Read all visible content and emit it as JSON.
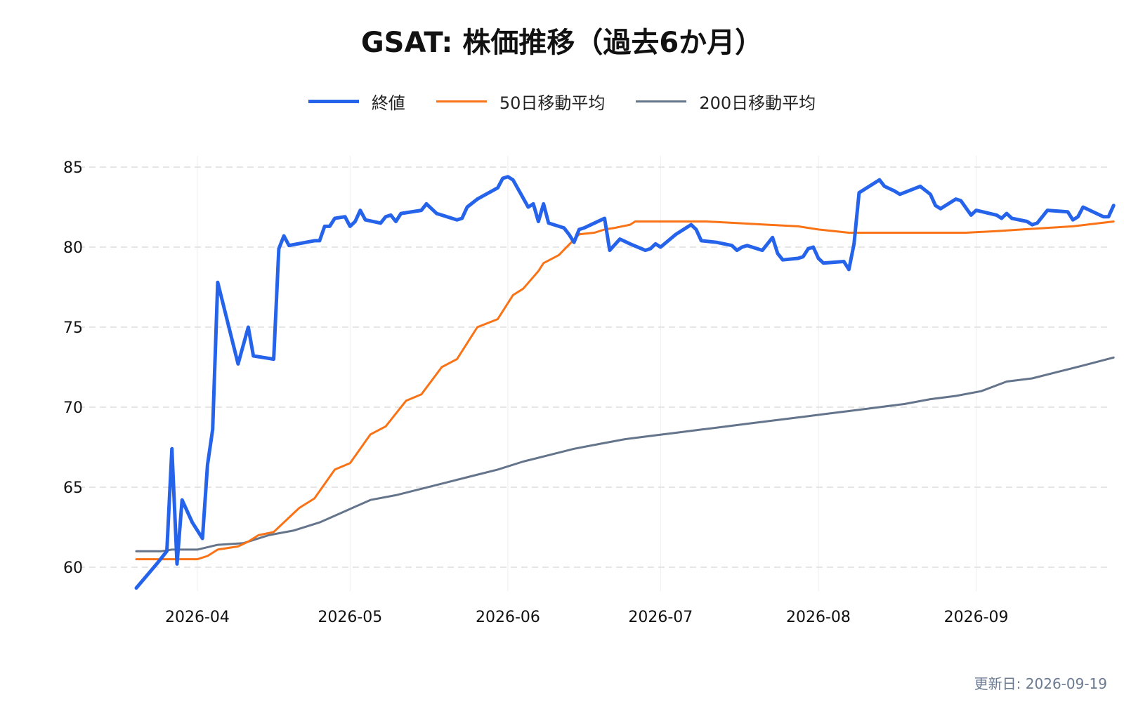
{
  "chart_data": {
    "type": "line",
    "title": "GSAT: 株価推移（過去6か月）",
    "xlabel": "",
    "ylabel": "",
    "grid": true,
    "legend_position": "top-center",
    "x_axis": {
      "min": "2026-03-20",
      "max": "2026-09-19",
      "ticks": [
        "2026-04-01",
        "2026-05-01",
        "2026-06-01",
        "2026-07-01",
        "2026-08-01",
        "2026-09-01"
      ],
      "tick_labels": [
        "2026-04",
        "2026-05",
        "2026-06",
        "2026-07",
        "2026-08",
        "2026-09"
      ]
    },
    "y_axis": {
      "min": 58,
      "max": 86,
      "ticks": [
        60,
        65,
        70,
        75,
        80,
        85
      ]
    },
    "series": [
      {
        "name": "終値",
        "color": "#2563eb",
        "points": [
          [
            "2026-03-20",
            58.7
          ],
          [
            "2026-03-24",
            60.2
          ],
          [
            "2026-03-26",
            61.0
          ],
          [
            "2026-03-27",
            67.4
          ],
          [
            "2026-03-28",
            60.2
          ],
          [
            "2026-03-29",
            64.2
          ],
          [
            "2026-03-31",
            62.8
          ],
          [
            "2026-04-02",
            61.8
          ],
          [
            "2026-04-03",
            66.4
          ],
          [
            "2026-04-04",
            68.6
          ],
          [
            "2026-04-05",
            77.8
          ],
          [
            "2026-04-09",
            72.7
          ],
          [
            "2026-04-11",
            75.0
          ],
          [
            "2026-04-12",
            73.2
          ],
          [
            "2026-04-16",
            73.0
          ],
          [
            "2026-04-17",
            79.9
          ],
          [
            "2026-04-18",
            80.7
          ],
          [
            "2026-04-19",
            80.1
          ],
          [
            "2026-04-24",
            80.4
          ],
          [
            "2026-04-25",
            80.4
          ],
          [
            "2026-04-26",
            81.3
          ],
          [
            "2026-04-27",
            81.3
          ],
          [
            "2026-04-28",
            81.8
          ],
          [
            "2026-04-30",
            81.9
          ],
          [
            "2026-05-01",
            81.3
          ],
          [
            "2026-05-02",
            81.6
          ],
          [
            "2026-05-03",
            82.3
          ],
          [
            "2026-05-04",
            81.7
          ],
          [
            "2026-05-07",
            81.5
          ],
          [
            "2026-05-08",
            81.9
          ],
          [
            "2026-05-09",
            82.0
          ],
          [
            "2026-05-10",
            81.6
          ],
          [
            "2026-05-11",
            82.1
          ],
          [
            "2026-05-15",
            82.3
          ],
          [
            "2026-05-16",
            82.7
          ],
          [
            "2026-05-18",
            82.1
          ],
          [
            "2026-05-22",
            81.7
          ],
          [
            "2026-05-23",
            81.8
          ],
          [
            "2026-05-24",
            82.5
          ],
          [
            "2026-05-26",
            83.0
          ],
          [
            "2026-05-30",
            83.7
          ],
          [
            "2026-05-31",
            84.3
          ],
          [
            "2026-06-01",
            84.4
          ],
          [
            "2026-06-02",
            84.2
          ],
          [
            "2026-06-05",
            82.5
          ],
          [
            "2026-06-06",
            82.7
          ],
          [
            "2026-06-07",
            81.6
          ],
          [
            "2026-06-08",
            82.7
          ],
          [
            "2026-06-09",
            81.5
          ],
          [
            "2026-06-12",
            81.2
          ],
          [
            "2026-06-13",
            80.8
          ],
          [
            "2026-06-14",
            80.3
          ],
          [
            "2026-06-15",
            81.1
          ],
          [
            "2026-06-16",
            81.2
          ],
          [
            "2026-06-18",
            81.5
          ],
          [
            "2026-06-20",
            81.8
          ],
          [
            "2026-06-21",
            79.8
          ],
          [
            "2026-06-23",
            80.5
          ],
          [
            "2026-06-25",
            80.2
          ],
          [
            "2026-06-28",
            79.8
          ],
          [
            "2026-06-29",
            79.9
          ],
          [
            "2026-06-30",
            80.2
          ],
          [
            "2026-07-01",
            80.0
          ],
          [
            "2026-07-04",
            80.8
          ],
          [
            "2026-07-06",
            81.2
          ],
          [
            "2026-07-07",
            81.4
          ],
          [
            "2026-07-08",
            81.1
          ],
          [
            "2026-07-09",
            80.4
          ],
          [
            "2026-07-12",
            80.3
          ],
          [
            "2026-07-15",
            80.1
          ],
          [
            "2026-07-16",
            79.8
          ],
          [
            "2026-07-17",
            80.0
          ],
          [
            "2026-07-18",
            80.1
          ],
          [
            "2026-07-21",
            79.8
          ],
          [
            "2026-07-23",
            80.6
          ],
          [
            "2026-07-24",
            79.6
          ],
          [
            "2026-07-25",
            79.2
          ],
          [
            "2026-07-28",
            79.3
          ],
          [
            "2026-07-29",
            79.4
          ],
          [
            "2026-07-30",
            79.9
          ],
          [
            "2026-07-31",
            80.0
          ],
          [
            "2026-08-01",
            79.3
          ],
          [
            "2026-08-02",
            79.0
          ],
          [
            "2026-08-06",
            79.1
          ],
          [
            "2026-08-07",
            78.6
          ],
          [
            "2026-08-08",
            80.2
          ],
          [
            "2026-08-09",
            83.4
          ],
          [
            "2026-08-11",
            83.8
          ],
          [
            "2026-08-12",
            84.0
          ],
          [
            "2026-08-13",
            84.2
          ],
          [
            "2026-08-14",
            83.8
          ],
          [
            "2026-08-16",
            83.5
          ],
          [
            "2026-08-17",
            83.3
          ],
          [
            "2026-08-21",
            83.8
          ],
          [
            "2026-08-23",
            83.3
          ],
          [
            "2026-08-24",
            82.6
          ],
          [
            "2026-08-25",
            82.4
          ],
          [
            "2026-08-28",
            83.0
          ],
          [
            "2026-08-29",
            82.9
          ],
          [
            "2026-08-31",
            82.0
          ],
          [
            "2026-09-01",
            82.3
          ],
          [
            "2026-09-05",
            82.0
          ],
          [
            "2026-09-06",
            81.8
          ],
          [
            "2026-09-07",
            82.1
          ],
          [
            "2026-09-08",
            81.8
          ],
          [
            "2026-09-11",
            81.6
          ],
          [
            "2026-09-12",
            81.4
          ],
          [
            "2026-09-13",
            81.5
          ],
          [
            "2026-09-15",
            82.3
          ],
          [
            "2026-09-19",
            82.2
          ],
          [
            "2026-09-20",
            81.7
          ],
          [
            "2026-09-21",
            81.9
          ],
          [
            "2026-09-22",
            82.5
          ],
          [
            "2026-09-26",
            81.9
          ],
          [
            "2026-09-27",
            81.9
          ],
          [
            "2026-09-28",
            82.6
          ]
        ]
      },
      {
        "name": "50日移動平均",
        "color": "#f97316",
        "points": [
          [
            "2026-03-20",
            60.5
          ],
          [
            "2026-03-25",
            60.5
          ],
          [
            "2026-03-27",
            60.5
          ],
          [
            "2026-04-01",
            60.5
          ],
          [
            "2026-04-03",
            60.7
          ],
          [
            "2026-04-05",
            61.1
          ],
          [
            "2026-04-09",
            61.3
          ],
          [
            "2026-04-11",
            61.6
          ],
          [
            "2026-04-13",
            62.0
          ],
          [
            "2026-04-16",
            62.2
          ],
          [
            "2026-04-20",
            63.4
          ],
          [
            "2026-04-21",
            63.7
          ],
          [
            "2026-04-24",
            64.3
          ],
          [
            "2026-04-28",
            66.1
          ],
          [
            "2026-05-01",
            66.5
          ],
          [
            "2026-05-05",
            68.3
          ],
          [
            "2026-05-08",
            68.8
          ],
          [
            "2026-05-12",
            70.4
          ],
          [
            "2026-05-15",
            70.8
          ],
          [
            "2026-05-19",
            72.5
          ],
          [
            "2026-05-22",
            73.0
          ],
          [
            "2026-05-26",
            75.0
          ],
          [
            "2026-05-30",
            75.5
          ],
          [
            "2026-06-02",
            77.0
          ],
          [
            "2026-06-04",
            77.4
          ],
          [
            "2026-06-07",
            78.5
          ],
          [
            "2026-06-08",
            79.0
          ],
          [
            "2026-06-11",
            79.5
          ],
          [
            "2026-06-15",
            80.8
          ],
          [
            "2026-06-18",
            80.9
          ],
          [
            "2026-06-20",
            81.1
          ],
          [
            "2026-06-22",
            81.2
          ],
          [
            "2026-06-25",
            81.4
          ],
          [
            "2026-06-26",
            81.6
          ],
          [
            "2026-07-05",
            81.6
          ],
          [
            "2026-07-10",
            81.6
          ],
          [
            "2026-07-16",
            81.5
          ],
          [
            "2026-07-22",
            81.4
          ],
          [
            "2026-07-28",
            81.3
          ],
          [
            "2026-08-01",
            81.1
          ],
          [
            "2026-08-07",
            80.9
          ],
          [
            "2026-08-12",
            80.9
          ],
          [
            "2026-08-18",
            80.9
          ],
          [
            "2026-08-24",
            80.9
          ],
          [
            "2026-08-30",
            80.9
          ],
          [
            "2026-09-05",
            81.0
          ],
          [
            "2026-09-10",
            81.1
          ],
          [
            "2026-09-15",
            81.2
          ],
          [
            "2026-09-20",
            81.3
          ],
          [
            "2026-09-28",
            81.6
          ]
        ]
      },
      {
        "name": "200日移動平均",
        "color": "#64748b",
        "points": [
          [
            "2026-03-20",
            61.0
          ],
          [
            "2026-03-25",
            61.0
          ],
          [
            "2026-03-27",
            61.1
          ],
          [
            "2026-04-01",
            61.1
          ],
          [
            "2026-04-05",
            61.4
          ],
          [
            "2026-04-10",
            61.5
          ],
          [
            "2026-04-15",
            62.0
          ],
          [
            "2026-04-20",
            62.3
          ],
          [
            "2026-04-25",
            62.8
          ],
          [
            "2026-04-30",
            63.5
          ],
          [
            "2026-05-05",
            64.2
          ],
          [
            "2026-05-10",
            64.5
          ],
          [
            "2026-05-15",
            64.9
          ],
          [
            "2026-05-20",
            65.3
          ],
          [
            "2026-05-25",
            65.7
          ],
          [
            "2026-05-30",
            66.1
          ],
          [
            "2026-06-04",
            66.6
          ],
          [
            "2026-06-09",
            67.0
          ],
          [
            "2026-06-14",
            67.4
          ],
          [
            "2026-06-19",
            67.7
          ],
          [
            "2026-06-24",
            68.0
          ],
          [
            "2026-06-29",
            68.2
          ],
          [
            "2026-07-04",
            68.4
          ],
          [
            "2026-07-09",
            68.6
          ],
          [
            "2026-07-14",
            68.8
          ],
          [
            "2026-07-19",
            69.0
          ],
          [
            "2026-07-24",
            69.2
          ],
          [
            "2026-07-29",
            69.4
          ],
          [
            "2026-08-03",
            69.6
          ],
          [
            "2026-08-08",
            69.8
          ],
          [
            "2026-08-13",
            70.0
          ],
          [
            "2026-08-18",
            70.2
          ],
          [
            "2026-08-23",
            70.5
          ],
          [
            "2026-08-28",
            70.7
          ],
          [
            "2026-09-02",
            71.0
          ],
          [
            "2026-09-07",
            71.6
          ],
          [
            "2026-09-12",
            71.8
          ],
          [
            "2026-09-17",
            72.2
          ],
          [
            "2026-09-22",
            72.6
          ],
          [
            "2026-09-28",
            73.1
          ]
        ]
      }
    ]
  },
  "footer": {
    "updated": "更新日: 2026-09-19"
  }
}
